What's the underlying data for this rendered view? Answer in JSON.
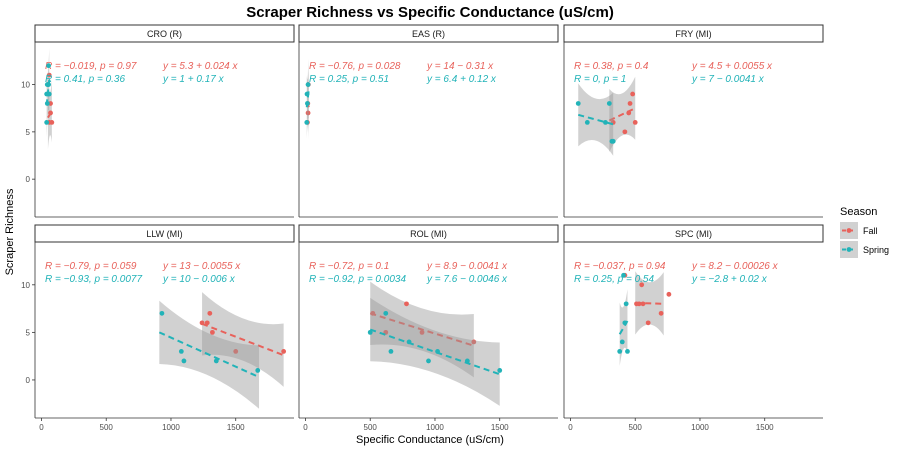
{
  "chart_data": {
    "type": "scatter",
    "title": "Scraper Richness vs Specific Conductance (uS/cm)",
    "xlabel": "Specific Conductance (uS/cm)",
    "ylabel": "Scraper Richness",
    "xlim": [
      -50,
      1950
    ],
    "ylim": [
      -4,
      14.5
    ],
    "xticks": [
      0,
      500,
      1000,
      1500
    ],
    "yticks": [
      0,
      5,
      10
    ],
    "legend": {
      "title": "Season",
      "position": "right",
      "entries": [
        "Fall",
        "Spring"
      ]
    },
    "colors": {
      "Fall": "#E8625B",
      "Spring": "#22B3B8",
      "ribbon": "#999999"
    },
    "panels": [
      {
        "name": "CRO (R)",
        "series": [
          {
            "name": "Fall",
            "points": [
              [
                60,
                6
              ],
              [
                70,
                7
              ],
              [
                80,
                6
              ],
              [
                70,
                8
              ],
              [
                50,
                10
              ],
              [
                60,
                11
              ]
            ],
            "fit": [
              [
                50,
                6.5
              ],
              [
                80,
                7.2
              ]
            ],
            "stat1": "R = −0.019, p = 0.97",
            "stat2": "y = 5.3 + 0.024 x"
          },
          {
            "name": "Spring",
            "points": [
              [
                40,
                6
              ],
              [
                45,
                8
              ],
              [
                40,
                9
              ],
              [
                50,
                9
              ],
              [
                55,
                10
              ],
              [
                55,
                12
              ],
              [
                60,
                9
              ],
              [
                45,
                10
              ]
            ],
            "fit": [
              [
                40,
                7.8
              ],
              [
                60,
                10.5
              ]
            ],
            "stat1": "R = 0.41, p = 0.36",
            "stat2": "y = 1 + 0.17 x"
          }
        ]
      },
      {
        "name": "EAS (R)",
        "series": [
          {
            "name": "Fall",
            "points": [
              [
                15,
                6
              ],
              [
                20,
                7
              ],
              [
                18,
                8
              ],
              [
                22,
                10
              ]
            ],
            "fit": [
              [
                15,
                8.2
              ],
              [
                25,
                7.6
              ]
            ],
            "stat1": "R = −0.76, p = 0.028",
            "stat2": "y = 14 − 0.31 x"
          },
          {
            "name": "Spring",
            "points": [
              [
                10,
                6
              ],
              [
                15,
                8
              ],
              [
                12,
                9
              ],
              [
                20,
                10
              ]
            ],
            "fit": [
              [
                10,
                7.6
              ],
              [
                25,
                9.4
              ]
            ],
            "stat1": "R = 0.25, p = 0.51",
            "stat2": "y = 6.4 + 0.12 x"
          }
        ]
      },
      {
        "name": "FRY (MI)",
        "series": [
          {
            "name": "Fall",
            "points": [
              [
                330,
                6
              ],
              [
                420,
                5
              ],
              [
                450,
                7
              ],
              [
                460,
                8
              ],
              [
                480,
                9
              ],
              [
                500,
                6
              ]
            ],
            "fit": [
              [
                300,
                6.2
              ],
              [
                500,
                7.5
              ]
            ],
            "stat1": "R = 0.38, p = 0.4",
            "stat2": "y = 4.5 + 0.0055 x"
          },
          {
            "name": "Spring",
            "points": [
              [
                60,
                8
              ],
              [
                130,
                6
              ],
              [
                270,
                6
              ],
              [
                300,
                8
              ],
              [
                320,
                4
              ],
              [
                330,
                4
              ]
            ],
            "fit": [
              [
                60,
                6.8
              ],
              [
                330,
                5.8
              ]
            ],
            "stat1": "R = 0, p = 1",
            "stat2": "y = 7 − 0.0041 x"
          }
        ]
      },
      {
        "name": "LLW (MI)",
        "series": [
          {
            "name": "Fall",
            "points": [
              [
                1240,
                6
              ],
              [
                1280,
                6
              ],
              [
                1300,
                7
              ],
              [
                1320,
                5
              ],
              [
                1500,
                3
              ],
              [
                1870,
                3
              ]
            ],
            "fit": [
              [
                1240,
                5.9
              ],
              [
                1870,
                2.6
              ]
            ],
            "stat1": "R = −0.79, p = 0.059",
            "stat2": "y = 13 − 0.0055 x"
          },
          {
            "name": "Spring",
            "points": [
              [
                930,
                7
              ],
              [
                1100,
                2
              ],
              [
                1080,
                3
              ],
              [
                1350,
                2
              ],
              [
                1670,
                1
              ]
            ],
            "fit": [
              [
                910,
                5.0
              ],
              [
                1680,
                0.3
              ]
            ],
            "stat1": "R = −0.93, p = 0.0077",
            "stat2": "y = 10 − 0.006 x"
          }
        ]
      },
      {
        "name": "ROL (MI)",
        "series": [
          {
            "name": "Fall",
            "points": [
              [
                520,
                7
              ],
              [
                620,
                5
              ],
              [
                780,
                8
              ],
              [
                900,
                5
              ],
              [
                1300,
                4
              ]
            ],
            "fit": [
              [
                500,
                7.0
              ],
              [
                1300,
                3.6
              ]
            ],
            "stat1": "R = −0.72, p = 0.1",
            "stat2": "y = 8.9 − 0.0041 x"
          },
          {
            "name": "Spring",
            "points": [
              [
                500,
                5
              ],
              [
                620,
                7
              ],
              [
                660,
                3
              ],
              [
                800,
                4
              ],
              [
                950,
                2
              ],
              [
                1020,
                3
              ],
              [
                1250,
                2
              ],
              [
                1500,
                1
              ]
            ],
            "fit": [
              [
                500,
                5.3
              ],
              [
                1500,
                0.6
              ]
            ],
            "stat1": "R = −0.92, p = 0.0034",
            "stat2": "y = 7.6 − 0.0046 x"
          }
        ]
      },
      {
        "name": "SPC (MI)",
        "series": [
          {
            "name": "Fall",
            "points": [
              [
                510,
                8
              ],
              [
                530,
                8
              ],
              [
                560,
                8
              ],
              [
                600,
                6
              ],
              [
                700,
                7
              ],
              [
                760,
                9
              ],
              [
                420,
                11
              ],
              [
                550,
                10
              ]
            ],
            "fit": [
              [
                500,
                8.1
              ],
              [
                720,
                8.0
              ]
            ],
            "stat1": "R = −0.037, p = 0.94",
            "stat2": "y = 8.2 − 0.00026 x"
          },
          {
            "name": "Spring",
            "points": [
              [
                380,
                3
              ],
              [
                400,
                4
              ],
              [
                420,
                6
              ],
              [
                430,
                8
              ],
              [
                440,
                3
              ],
              [
                410,
                11
              ]
            ],
            "fit": [
              [
                380,
                4.8
              ],
              [
                440,
                6.2
              ]
            ],
            "stat1": "R = 0.25, p = 0.54",
            "stat2": "y = −2.8 + 0.02 x"
          }
        ]
      }
    ]
  }
}
